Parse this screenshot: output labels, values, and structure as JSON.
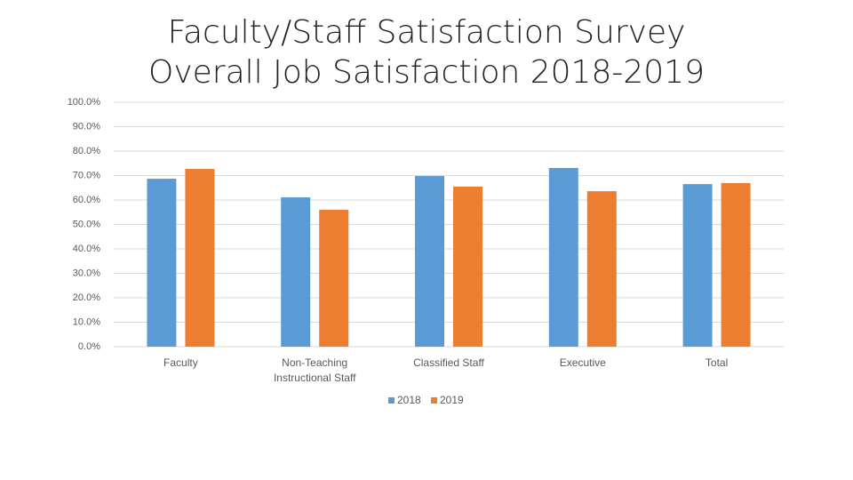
{
  "chart_data": {
    "type": "bar",
    "title": "Faculty/Staff Satisfaction Survey",
    "subtitle": "Overall Job Satisfaction 2018-2019",
    "categories": [
      "Faculty",
      "Non-Teaching Instructional Staff",
      "Classified Staff",
      "Executive",
      "Total"
    ],
    "series": [
      {
        "name": "2018",
        "color": "#5b9bd5",
        "values": [
          68.7,
          61.1,
          69.8,
          73.1,
          66.5
        ]
      },
      {
        "name": "2019",
        "color": "#ed7d31",
        "values": [
          72.7,
          56.0,
          65.5,
          63.6,
          66.9
        ]
      }
    ],
    "ylim": [
      0,
      100
    ],
    "yticks": [
      {
        "value": 0,
        "label": "0.0%"
      },
      {
        "value": 10,
        "label": "10.0%"
      },
      {
        "value": 20,
        "label": "20.0%"
      },
      {
        "value": 30,
        "label": "30.0%"
      },
      {
        "value": 40,
        "label": "40.0%"
      },
      {
        "value": 50,
        "label": "50.0%"
      },
      {
        "value": 60,
        "label": "60.0%"
      },
      {
        "value": 70,
        "label": "70.0%"
      },
      {
        "value": 80,
        "label": "80.0%"
      },
      {
        "value": 90,
        "label": "90.0%"
      },
      {
        "value": 100,
        "label": "100.0%"
      }
    ],
    "grid": true,
    "legend": "bottom"
  }
}
